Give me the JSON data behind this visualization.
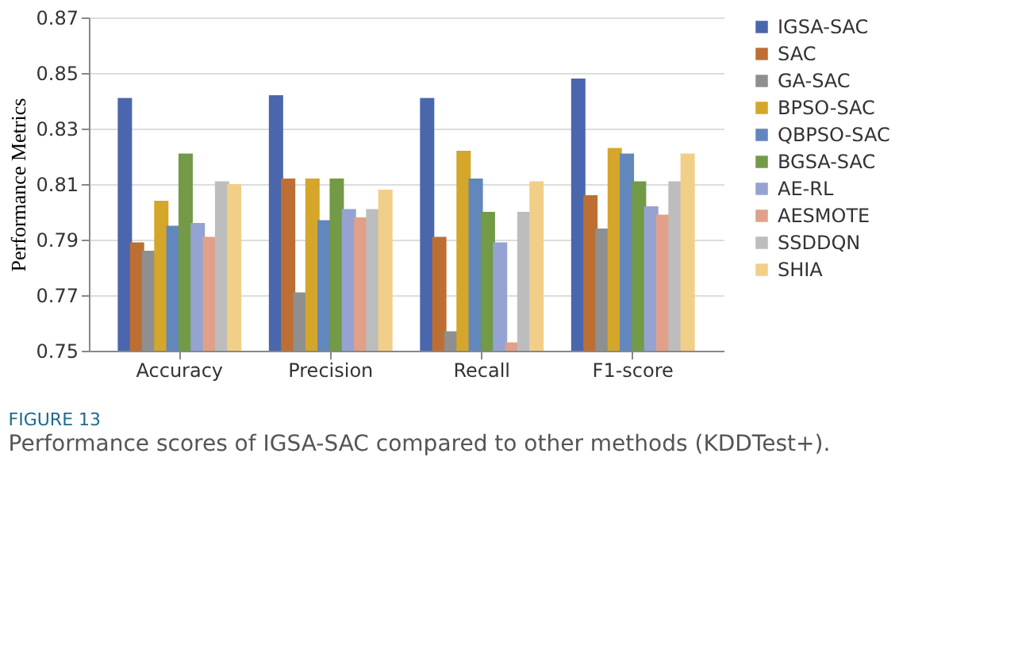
{
  "chart_data": {
    "type": "bar",
    "ylabel": "Performance Metrics",
    "categories": [
      "Accuracy",
      "Precision",
      "Recall",
      "F1-score"
    ],
    "series": [
      {
        "name": "IGSA-SAC",
        "color": "#4a66ac",
        "values": [
          0.841,
          0.842,
          0.841,
          0.848
        ]
      },
      {
        "name": "SAC",
        "color": "#bd6f33",
        "values": [
          0.789,
          0.812,
          0.791,
          0.806
        ]
      },
      {
        "name": "GA-SAC",
        "color": "#8f8f8f",
        "values": [
          0.786,
          0.771,
          0.757,
          0.794
        ]
      },
      {
        "name": "BPSO-SAC",
        "color": "#d4a62a",
        "values": [
          0.804,
          0.812,
          0.822,
          0.823
        ]
      },
      {
        "name": "QBPSO-SAC",
        "color": "#6187bc",
        "values": [
          0.795,
          0.797,
          0.812,
          0.821
        ]
      },
      {
        "name": "BGSA-SAC",
        "color": "#729a47",
        "values": [
          0.821,
          0.812,
          0.8,
          0.811
        ]
      },
      {
        "name": "AE-RL",
        "color": "#94a3d2",
        "values": [
          0.796,
          0.801,
          0.789,
          0.802
        ]
      },
      {
        "name": "AESMOTE",
        "color": "#e0a089",
        "values": [
          0.791,
          0.798,
          0.753,
          0.799
        ]
      },
      {
        "name": "SSDDQN",
        "color": "#bdbdbd",
        "values": [
          0.811,
          0.801,
          0.8,
          0.811
        ]
      },
      {
        "name": "SHIA",
        "color": "#f2cf88",
        "values": [
          0.81,
          0.808,
          0.811,
          0.821
        ]
      }
    ],
    "ylim": [
      0.75,
      0.87
    ],
    "yticks": [
      0.75,
      0.77,
      0.79,
      0.81,
      0.83,
      0.85,
      0.87
    ],
    "grid": "y",
    "legend": "right",
    "annotations": [
      "FIGURE 13",
      "Performance scores of IGSA-SAC compared to other methods (KDDTest+)."
    ]
  }
}
